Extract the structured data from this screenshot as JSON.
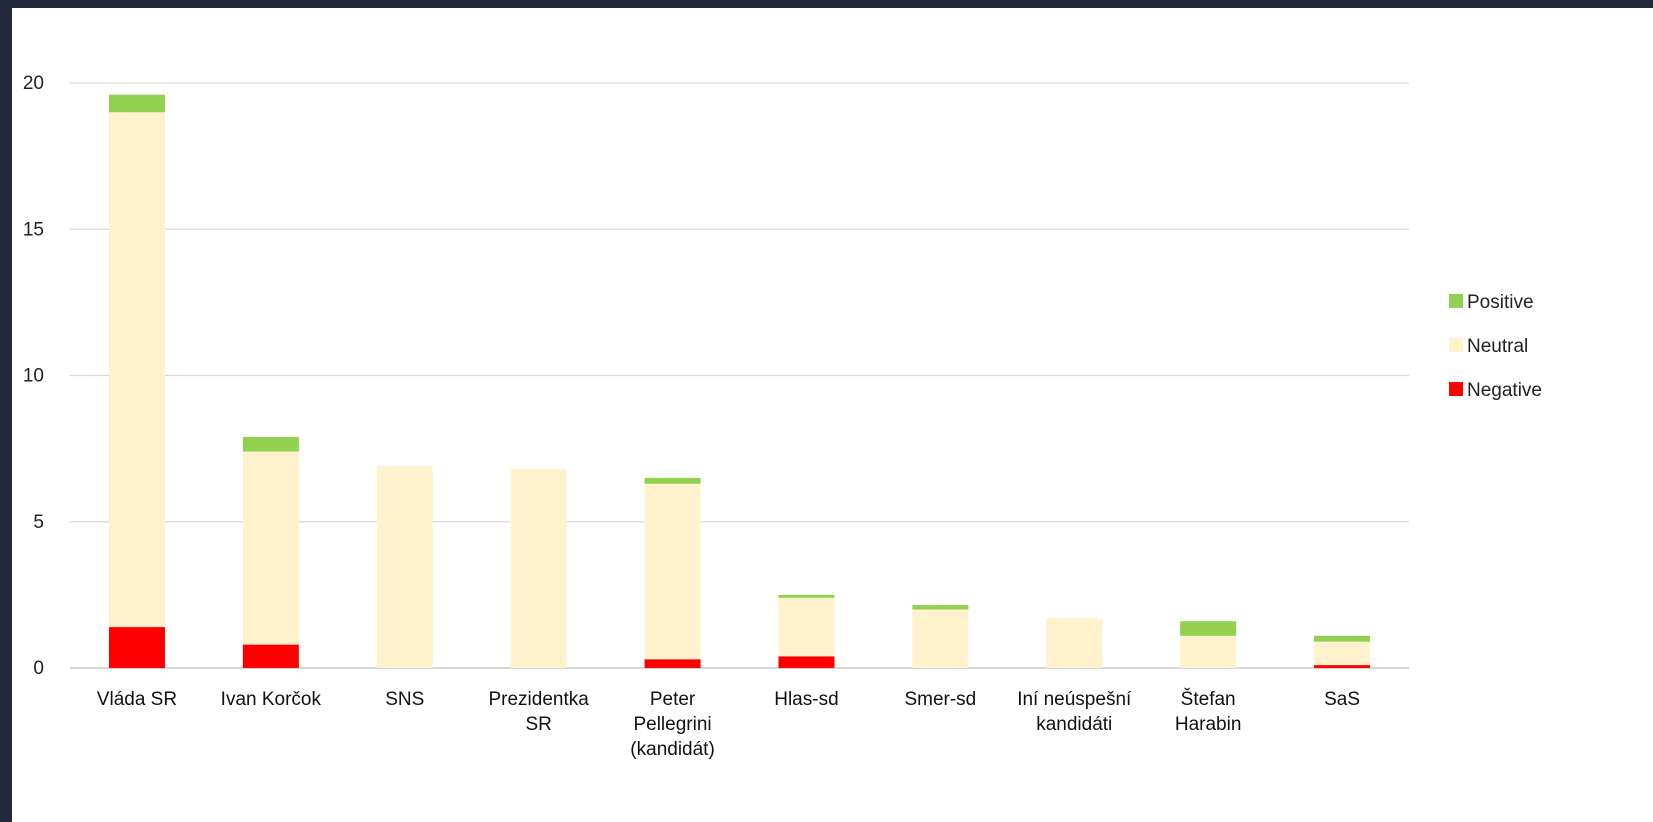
{
  "chart_data": {
    "type": "bar",
    "stacked": true,
    "categories": [
      [
        "Vláda SR"
      ],
      [
        "Ivan Korčok"
      ],
      [
        "SNS"
      ],
      [
        "Prezidentka",
        "SR"
      ],
      [
        "Peter",
        "Pellegrini",
        "(kandidát)"
      ],
      [
        "Hlas-sd"
      ],
      [
        "Smer-sd"
      ],
      [
        "Iní neúspešní",
        "kandidáti"
      ],
      [
        "Štefan",
        "Harabin"
      ],
      [
        "SaS"
      ]
    ],
    "series": [
      {
        "name": "Negative",
        "color": "#ff0000",
        "values": [
          1.4,
          0.8,
          0,
          0,
          0.3,
          0.4,
          0,
          0,
          0,
          0.1
        ]
      },
      {
        "name": "Neutral",
        "color": "#fff2cc",
        "values": [
          17.6,
          6.6,
          6.9,
          6.8,
          6.0,
          2.0,
          2.0,
          1.7,
          1.1,
          0.8
        ]
      },
      {
        "name": "Positive",
        "color": "#92d050",
        "values": [
          0.6,
          0.5,
          0,
          0,
          0.2,
          0.1,
          0.15,
          0,
          0.5,
          0.2
        ]
      }
    ],
    "legend_order": [
      "Positive",
      "Neutral",
      "Negative"
    ],
    "yticks": [
      0,
      5,
      10,
      15,
      20
    ],
    "ylim": [
      0,
      20
    ],
    "grid": true,
    "legend_position": "right"
  }
}
